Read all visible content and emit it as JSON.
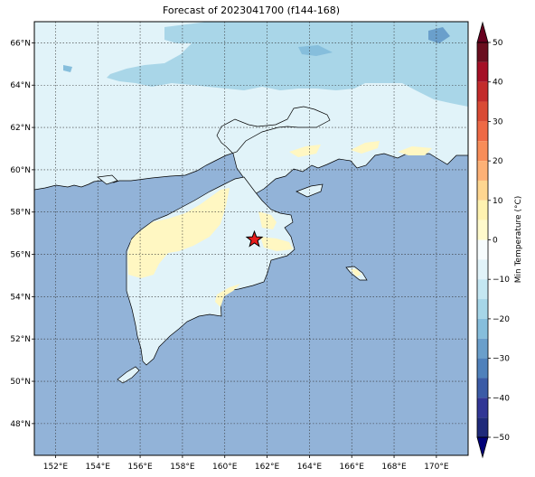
{
  "title": "Forecast of 2023041700 (f144-168)",
  "map": {
    "lon_range": [
      151.0,
      171.5
    ],
    "lat_range": [
      46.5,
      67.0
    ],
    "lon_ticks": [
      "152°E",
      "154°E",
      "156°E",
      "158°E",
      "160°E",
      "162°E",
      "164°E",
      "166°E",
      "168°E",
      "170°E"
    ],
    "lat_ticks": [
      "48°N",
      "50°N",
      "52°N",
      "54°N",
      "56°N",
      "58°N",
      "60°N",
      "62°N",
      "64°N",
      "66°N"
    ],
    "lon_tick_values": [
      152,
      154,
      156,
      158,
      160,
      162,
      164,
      166,
      168,
      170
    ],
    "lat_tick_values": [
      48,
      50,
      52,
      54,
      56,
      58,
      60,
      62,
      64,
      66
    ],
    "grid": "dotted",
    "ocean_color": "#92b3d8",
    "land_color": "#e1f3f9",
    "marker": {
      "icon": "red-star-icon",
      "lon": 161.4,
      "lat": 56.7,
      "color": "#e81c1c"
    }
  },
  "colorbar": {
    "label": "Min Temperature (°C)",
    "ticks": [
      "50",
      "40",
      "30",
      "20",
      "10",
      "0",
      "−10",
      "−20",
      "−30",
      "−40",
      "−50"
    ],
    "tick_values": [
      50,
      40,
      30,
      20,
      10,
      0,
      -10,
      -20,
      -30,
      -40,
      -50
    ],
    "bins": [
      {
        "from": 45,
        "to": 50,
        "color": "#6a0e1f"
      },
      {
        "from": 40,
        "to": 45,
        "color": "#a50f26"
      },
      {
        "from": 35,
        "to": 40,
        "color": "#c32b2b"
      },
      {
        "from": 30,
        "to": 35,
        "color": "#d94a34"
      },
      {
        "from": 25,
        "to": 30,
        "color": "#ee6945"
      },
      {
        "from": 20,
        "to": 25,
        "color": "#f88d59"
      },
      {
        "from": 15,
        "to": 20,
        "color": "#fdb176"
      },
      {
        "from": 10,
        "to": 15,
        "color": "#fed690"
      },
      {
        "from": 5,
        "to": 10,
        "color": "#fff2b0"
      },
      {
        "from": 0,
        "to": 5,
        "color": "#fffacc"
      },
      {
        "from": -5,
        "to": 0,
        "color": "#f7fcfd"
      },
      {
        "from": -10,
        "to": -5,
        "color": "#e1f3f9"
      },
      {
        "from": -15,
        "to": -10,
        "color": "#c4e7f2"
      },
      {
        "from": -20,
        "to": -15,
        "color": "#a6d6e8"
      },
      {
        "from": -25,
        "to": -20,
        "color": "#86bedc"
      },
      {
        "from": -30,
        "to": -25,
        "color": "#6a9fcb"
      },
      {
        "from": -35,
        "to": -30,
        "color": "#4f81bb"
      },
      {
        "from": -40,
        "to": -35,
        "color": "#3b5ba6"
      },
      {
        "from": -45,
        "to": -40,
        "color": "#313695"
      },
      {
        "from": -50,
        "to": -45,
        "color": "#1f2a7a"
      }
    ],
    "extend_top_color": "#67001f",
    "extend_bottom_color": "#000078"
  }
}
